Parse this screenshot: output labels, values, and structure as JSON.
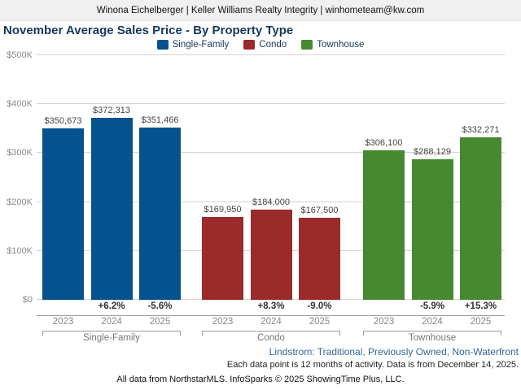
{
  "header": {
    "contact_line": "Winona Eichelberger | Keller Williams Realty Integrity | winhometeam@kw.com"
  },
  "title": "November Average Sales Price - By Property Type",
  "chart_data": {
    "type": "bar",
    "title": "November Average Sales Price - By Property Type",
    "legend_position": "top",
    "grid": true,
    "categories": [
      "2023",
      "2024",
      "2025"
    ],
    "y_axis": {
      "min": 0,
      "max": 500000,
      "ticks": [
        "$0",
        "$100K",
        "$200K",
        "$300K",
        "$400K",
        "$500K"
      ]
    },
    "groups": [
      {
        "name": "Single-Family",
        "color": "#04528e",
        "values": [
          350673,
          372313,
          351466
        ],
        "labels": [
          "$350,673",
          "$372,313",
          "$351,466"
        ],
        "pct_change": [
          "",
          "+6.2%",
          "-5.6%"
        ]
      },
      {
        "name": "Condo",
        "color": "#9b2b2b",
        "values": [
          169950,
          184000,
          167500
        ],
        "labels": [
          "$169,950",
          "$184,000",
          "$167,500"
        ],
        "pct_change": [
          "",
          "+8.3%",
          "-9.0%"
        ]
      },
      {
        "name": "Townhouse",
        "color": "#478931",
        "values": [
          306100,
          288129,
          332271
        ],
        "labels": [
          "$306,100",
          "$288,129",
          "$332,271"
        ],
        "pct_change": [
          "",
          "-5.9%",
          "+15.3%"
        ]
      }
    ]
  },
  "footer": {
    "filter_line": "Lindstrom: Traditional, Previously Owned, Non-Waterfront",
    "data_note": "Each data point is 12 months of activity. Data is from December 14, 2025.",
    "attribution": "All data from NorthstarMLS. InfoSparks © 2025 ShowingTime Plus, LLC."
  }
}
